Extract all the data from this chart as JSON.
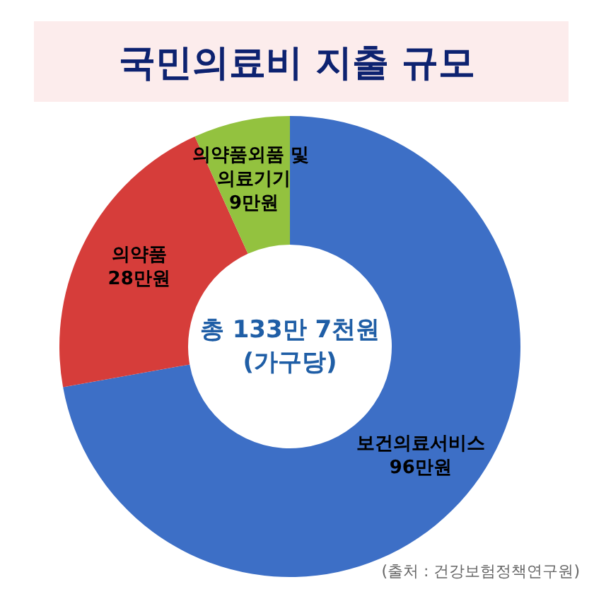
{
  "chart_data": {
    "type": "donut",
    "title": "국민의료비 지출 규모",
    "categories": [
      "보건의료서비스",
      "의약품",
      "의약품외품 및 의료기기"
    ],
    "values": [
      96,
      28,
      9
    ],
    "value_labels": [
      "96만원",
      "28만원",
      "9만원"
    ],
    "colors": [
      "#3d6fc6",
      "#d63d3a",
      "#93c23f"
    ],
    "annotations": [
      "총 133만 7천원\n(가구당)",
      "(출처 : 건강보험정책연구원)"
    ]
  }
}
